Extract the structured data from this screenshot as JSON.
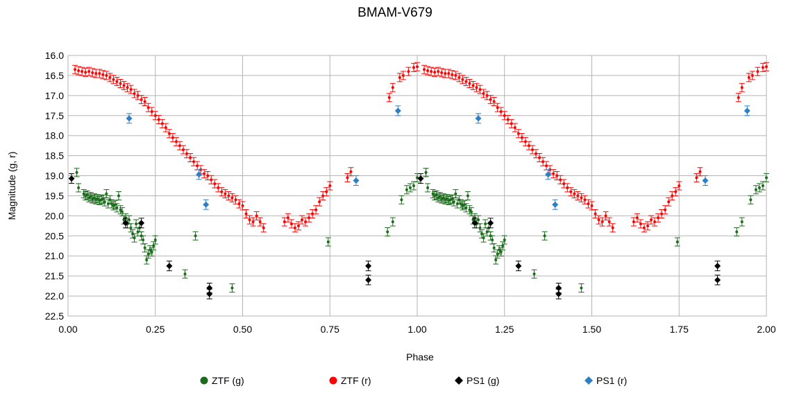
{
  "chart_data": {
    "type": "scatter",
    "title": "BMAM-V679",
    "xlabel": "Phase",
    "ylabel": "Magnitude (g, r)",
    "xlim": [
      0,
      2
    ],
    "ylim": [
      16.0,
      22.5
    ],
    "y_inverted": true,
    "x_ticks": [
      "0.00",
      "0.25",
      "0.50",
      "0.75",
      "1.00",
      "1.25",
      "1.50",
      "1.75",
      "2.00"
    ],
    "y_ticks": [
      "16.0",
      "16.5",
      "17.0",
      "17.5",
      "18.0",
      "18.5",
      "19.0",
      "19.5",
      "20.0",
      "20.5",
      "21.0",
      "21.5",
      "22.0",
      "22.5"
    ],
    "grid": true,
    "legend_position": "bottom",
    "series": [
      {
        "name": "ZTF (g)",
        "color": "#1a6b1a",
        "marker": "circle",
        "error_bars": true,
        "points": [
          [
            0.025,
            18.92
          ],
          [
            0.03,
            19.3
          ],
          [
            0.045,
            19.45
          ],
          [
            0.05,
            19.5
          ],
          [
            0.055,
            19.48
          ],
          [
            0.06,
            19.55
          ],
          [
            0.065,
            19.52
          ],
          [
            0.07,
            19.58
          ],
          [
            0.075,
            19.55
          ],
          [
            0.08,
            19.6
          ],
          [
            0.085,
            19.57
          ],
          [
            0.09,
            19.62
          ],
          [
            0.095,
            19.6
          ],
          [
            0.1,
            19.58
          ],
          [
            0.105,
            19.65
          ],
          [
            0.11,
            19.45
          ],
          [
            0.115,
            19.7
          ],
          [
            0.12,
            19.6
          ],
          [
            0.125,
            19.7
          ],
          [
            0.13,
            19.75
          ],
          [
            0.135,
            19.72
          ],
          [
            0.14,
            19.8
          ],
          [
            0.145,
            19.5
          ],
          [
            0.15,
            19.85
          ],
          [
            0.155,
            19.9
          ],
          [
            0.16,
            20.1
          ],
          [
            0.165,
            20.05
          ],
          [
            0.17,
            20.2
          ],
          [
            0.175,
            20.1
          ],
          [
            0.18,
            20.3
          ],
          [
            0.185,
            20.45
          ],
          [
            0.19,
            20.55
          ],
          [
            0.195,
            20.2
          ],
          [
            0.2,
            20.4
          ],
          [
            0.205,
            20.3
          ],
          [
            0.21,
            20.5
          ],
          [
            0.215,
            20.6
          ],
          [
            0.22,
            20.8
          ],
          [
            0.225,
            21.1
          ],
          [
            0.23,
            20.95
          ],
          [
            0.235,
            20.85
          ],
          [
            0.24,
            20.9
          ],
          [
            0.245,
            20.75
          ],
          [
            0.25,
            20.6
          ],
          [
            0.365,
            20.5
          ],
          [
            0.335,
            21.45
          ],
          [
            0.47,
            21.8
          ],
          [
            0.745,
            20.65
          ],
          [
            0.915,
            20.4
          ],
          [
            0.93,
            20.15
          ],
          [
            0.955,
            19.6
          ],
          [
            0.97,
            19.35
          ],
          [
            0.98,
            19.3
          ],
          [
            0.99,
            19.25
          ],
          [
            1.0,
            19.05
          ],
          [
            1.025,
            18.92
          ]
        ]
      },
      {
        "name": "ZTF (r)",
        "color": "#ff0000",
        "marker": "circle",
        "error_bars": true,
        "points": [
          [
            0.02,
            16.35
          ],
          [
            0.03,
            16.38
          ],
          [
            0.04,
            16.4
          ],
          [
            0.05,
            16.42
          ],
          [
            0.06,
            16.4
          ],
          [
            0.07,
            16.43
          ],
          [
            0.08,
            16.45
          ],
          [
            0.09,
            16.45
          ],
          [
            0.1,
            16.48
          ],
          [
            0.11,
            16.5
          ],
          [
            0.12,
            16.55
          ],
          [
            0.13,
            16.6
          ],
          [
            0.14,
            16.65
          ],
          [
            0.15,
            16.7
          ],
          [
            0.16,
            16.75
          ],
          [
            0.17,
            16.8
          ],
          [
            0.18,
            16.85
          ],
          [
            0.19,
            16.95
          ],
          [
            0.2,
            17.0
          ],
          [
            0.21,
            17.1
          ],
          [
            0.22,
            17.15
          ],
          [
            0.23,
            17.3
          ],
          [
            0.24,
            17.4
          ],
          [
            0.25,
            17.5
          ],
          [
            0.26,
            17.6
          ],
          [
            0.27,
            17.7
          ],
          [
            0.28,
            17.8
          ],
          [
            0.29,
            17.95
          ],
          [
            0.3,
            18.05
          ],
          [
            0.31,
            18.15
          ],
          [
            0.32,
            18.25
          ],
          [
            0.33,
            18.35
          ],
          [
            0.34,
            18.45
          ],
          [
            0.35,
            18.55
          ],
          [
            0.36,
            18.65
          ],
          [
            0.37,
            18.75
          ],
          [
            0.38,
            18.85
          ],
          [
            0.39,
            18.95
          ],
          [
            0.4,
            19.0
          ],
          [
            0.41,
            19.1
          ],
          [
            0.42,
            19.2
          ],
          [
            0.43,
            19.3
          ],
          [
            0.44,
            19.4
          ],
          [
            0.45,
            19.45
          ],
          [
            0.46,
            19.5
          ],
          [
            0.47,
            19.55
          ],
          [
            0.48,
            19.6
          ],
          [
            0.49,
            19.7
          ],
          [
            0.5,
            19.75
          ],
          [
            0.51,
            19.95
          ],
          [
            0.52,
            20.1
          ],
          [
            0.53,
            20.15
          ],
          [
            0.54,
            20.0
          ],
          [
            0.55,
            20.15
          ],
          [
            0.56,
            20.3
          ],
          [
            0.62,
            20.15
          ],
          [
            0.63,
            20.05
          ],
          [
            0.64,
            20.2
          ],
          [
            0.65,
            20.3
          ],
          [
            0.66,
            20.25
          ],
          [
            0.67,
            20.1
          ],
          [
            0.68,
            20.15
          ],
          [
            0.69,
            20.05
          ],
          [
            0.7,
            19.95
          ],
          [
            0.71,
            19.85
          ],
          [
            0.72,
            19.65
          ],
          [
            0.73,
            19.5
          ],
          [
            0.74,
            19.4
          ],
          [
            0.75,
            19.25
          ],
          [
            0.8,
            19.05
          ],
          [
            0.81,
            18.9
          ],
          [
            0.92,
            17.05
          ],
          [
            0.93,
            16.8
          ],
          [
            0.95,
            16.55
          ],
          [
            0.96,
            16.5
          ],
          [
            0.975,
            16.4
          ],
          [
            0.99,
            16.3
          ],
          [
            1.0,
            16.28
          ]
        ]
      },
      {
        "name": "PS1 (g)",
        "color": "#000000",
        "marker": "diamond",
        "error_bars": true,
        "points": [
          [
            0.01,
            19.07
          ],
          [
            0.165,
            20.18
          ],
          [
            0.21,
            20.18
          ],
          [
            0.29,
            21.25
          ],
          [
            0.405,
            21.8
          ],
          [
            0.405,
            21.95
          ],
          [
            0.86,
            21.25
          ],
          [
            0.86,
            21.6
          ]
        ]
      },
      {
        "name": "PS1 (r)",
        "color": "#2f7fc4",
        "marker": "diamond",
        "error_bars": true,
        "points": [
          [
            0.175,
            17.57
          ],
          [
            0.375,
            18.97
          ],
          [
            0.395,
            19.72
          ],
          [
            0.825,
            19.12
          ],
          [
            0.945,
            17.38
          ]
        ]
      }
    ]
  }
}
